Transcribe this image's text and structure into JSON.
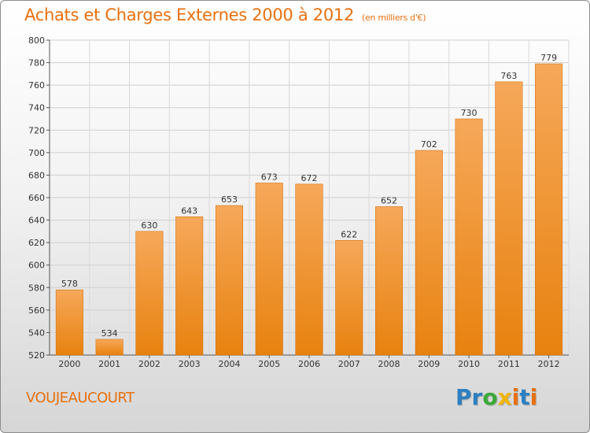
{
  "header": {
    "title": "Achats et Charges Externes 2000 à 2012",
    "unit": "(en milliers d'€)"
  },
  "footer": {
    "commune": "VOUJEAUCOURT",
    "logo_letters": [
      {
        "char": "P",
        "color": "#2d7fc1"
      },
      {
        "char": "r",
        "color": "#2d7fc1"
      },
      {
        "char": "o",
        "color": "#3aa83a"
      },
      {
        "char": "x",
        "color": "#f2b600"
      },
      {
        "char": "i",
        "color": "#e8700e"
      },
      {
        "char": "t",
        "color": "#2d7fc1"
      },
      {
        "char": "i",
        "color": "#e8700e"
      }
    ]
  },
  "chart_data": {
    "type": "bar",
    "title": "Achats et Charges Externes 2000 à 2012",
    "subtitle": "(en milliers d'€)",
    "categories": [
      "2000",
      "2001",
      "2002",
      "2003",
      "2004",
      "2005",
      "2006",
      "2007",
      "2008",
      "2009",
      "2010",
      "2011",
      "2012"
    ],
    "values": [
      578,
      534,
      630,
      643,
      653,
      673,
      672,
      622,
      652,
      702,
      730,
      763,
      779
    ],
    "ylim": [
      520,
      800
    ],
    "yticks": [
      520,
      540,
      560,
      580,
      600,
      620,
      640,
      660,
      680,
      700,
      720,
      740,
      760,
      780,
      800
    ],
    "grid": true,
    "bar_color": "#e8820f",
    "bar_color_light": "#f6a85a",
    "data_labels": true
  }
}
